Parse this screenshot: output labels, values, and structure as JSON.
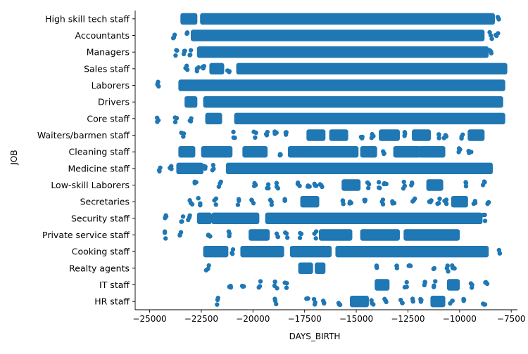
{
  "colors": {
    "marker": "#1f77b4",
    "axis": "#000000"
  },
  "chart_data": {
    "type": "scatter",
    "subtype": "strip",
    "xlabel": "DAYS_BIRTH",
    "ylabel": "JOB",
    "xlim": [
      -25700,
      -7200
    ],
    "x_ticks": [
      -25000,
      -22500,
      -20000,
      -17500,
      -15000,
      -12500,
      -10000,
      -7500
    ],
    "x_tick_labels": [
      "−25000",
      "−22500",
      "−20000",
      "−17500",
      "−15000",
      "−12500",
      "−10000",
      "−7500"
    ],
    "categories": [
      "High skill tech staff",
      "Accountants",
      "Managers",
      "Sales staff",
      "Laborers",
      "Drivers",
      "Core staff",
      "Waiters/barmen staff",
      "Cleaning staff",
      "Medicine staff",
      "Low-skill Laborers",
      "Secretaries",
      "Security staff",
      "Private service staff",
      "Cooking staff",
      "Realty agents",
      "IT staff",
      "HR staff"
    ],
    "grid": false,
    "legend": "none",
    "strips": [
      {
        "category": "High skill tech staff",
        "segments": [
          [
            -23400,
            -22800
          ],
          [
            -22450,
            -8400
          ]
        ],
        "points": [
          -8100
        ]
      },
      {
        "category": "Accountants",
        "segments": [
          [
            -22900,
            -8900
          ]
        ],
        "points": [
          -23800,
          -23200,
          -8500,
          -8200
        ]
      },
      {
        "category": "Managers",
        "segments": [
          [
            -22600,
            -8700
          ]
        ],
        "points": [
          -23700,
          -23300,
          -23000,
          -8500
        ]
      },
      {
        "category": "Sales staff",
        "segments": [
          [
            -22000,
            -21500
          ],
          [
            -20700,
            -7800
          ]
        ],
        "points": [
          -23200,
          -22700,
          -22400,
          -21200
        ]
      },
      {
        "category": "Laborers",
        "segments": [
          [
            -23500,
            -7900
          ]
        ],
        "points": [
          -24600
        ]
      },
      {
        "category": "Drivers",
        "segments": [
          [
            -23200,
            -22800
          ],
          [
            -22300,
            -8000
          ]
        ],
        "points": []
      },
      {
        "category": "Core staff",
        "segments": [
          [
            -22200,
            -21600
          ],
          [
            -20800,
            -7900
          ]
        ],
        "points": [
          -24600,
          -23700,
          -23000
        ]
      },
      {
        "category": "Waiters/barmen staff",
        "segments": [
          [
            -17300,
            -16600
          ],
          [
            -16200,
            -15500
          ],
          [
            -13800,
            -13000
          ],
          [
            -12200,
            -11500
          ],
          [
            -9500,
            -8900
          ]
        ],
        "points": [
          -23400,
          -20900,
          -19900,
          -19300,
          -18900,
          -18400,
          -14700,
          -14200,
          -12600,
          -11000,
          -10700,
          -9900
        ]
      },
      {
        "category": "Cleaning staff",
        "segments": [
          [
            -23500,
            -22900
          ],
          [
            -22400,
            -21100
          ],
          [
            -20400,
            -19400
          ],
          [
            -18200,
            -15000
          ],
          [
            -14700,
            -14100
          ],
          [
            -13100,
            -12000
          ],
          [
            -11900,
            -10800
          ]
        ],
        "points": [
          -18700,
          -17600,
          -13700,
          -11300,
          -10000,
          -9500
        ]
      },
      {
        "category": "Medicine staff",
        "segments": [
          [
            -23600,
            -22500
          ],
          [
            -21200,
            -8500
          ]
        ],
        "points": [
          -24500,
          -24000,
          -22300,
          -21900
        ]
      },
      {
        "category": "Low-skill Laborers",
        "segments": [
          [
            -15600,
            -14900
          ],
          [
            -11500,
            -10900
          ]
        ],
        "points": [
          -22800,
          -21600,
          -19900,
          -19300,
          -18800,
          -17800,
          -17300,
          -17000,
          -16700,
          -14400,
          -13900,
          -13600,
          -12700,
          -12300,
          -9700,
          -8800
        ]
      },
      {
        "category": "Secretaries",
        "segments": [
          [
            -17600,
            -16900
          ],
          [
            -10300,
            -9700
          ]
        ],
        "points": [
          -23000,
          -22600,
          -21800,
          -20700,
          -20000,
          -19100,
          -18400,
          -15600,
          -15300,
          -14600,
          -13700,
          -13200,
          -12200,
          -11400,
          -11000,
          -10700,
          -9300,
          -8600
        ]
      },
      {
        "category": "Security staff",
        "segments": [
          [
            -22600,
            -22100
          ],
          [
            -21900,
            -19800
          ],
          [
            -19300,
            -9000
          ]
        ],
        "points": [
          -24200,
          -23400,
          -23100,
          -8800
        ]
      },
      {
        "category": "Private service staff",
        "segments": [
          [
            -20100,
            -19300
          ],
          [
            -16700,
            -15300
          ],
          [
            -14700,
            -13000
          ],
          [
            -12600,
            -10100
          ]
        ],
        "points": [
          -24200,
          -23500,
          -22100,
          -21200,
          -18800,
          -18400,
          -17700,
          -17000
        ]
      },
      {
        "category": "Cooking staff",
        "segments": [
          [
            -22300,
            -21300
          ],
          [
            -20500,
            -18600
          ],
          [
            -18100,
            -16300
          ],
          [
            -15900,
            -8700
          ]
        ],
        "points": [
          -21000,
          -8100
        ]
      },
      {
        "category": "Realty agents",
        "segments": [
          [
            -17700,
            -17200
          ],
          [
            -16900,
            -16600
          ]
        ],
        "points": [
          -22200,
          -14000,
          -13000,
          -12400,
          -11200,
          -10600,
          -10300
        ]
      },
      {
        "category": "IT staff",
        "segments": [
          [
            -14000,
            -13500
          ],
          [
            -10500,
            -10100
          ]
        ],
        "points": [
          -21100,
          -20500,
          -19700,
          -18900,
          -18400,
          -12600,
          -11700,
          -11200,
          -9400,
          -8700
        ]
      },
      {
        "category": "HR staff",
        "segments": [
          [
            -15200,
            -14500
          ],
          [
            -11300,
            -10800
          ]
        ],
        "points": [
          -21700,
          -18900,
          -17400,
          -17000,
          -16600,
          -15800,
          -14200,
          -13600,
          -12800,
          -12300,
          -11900,
          -10400,
          -9800,
          -8800
        ]
      }
    ]
  }
}
